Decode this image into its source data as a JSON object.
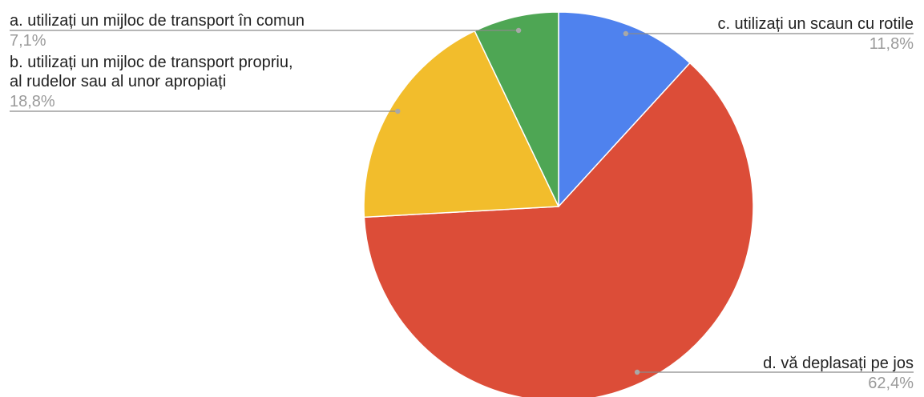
{
  "chart_data": {
    "type": "pie",
    "title": "",
    "start_angle_deg": 0,
    "direction": "clockwise",
    "legend": "none",
    "slices": [
      {
        "label_lines": [
          "c. utilizați un scaun cu rotile"
        ],
        "value": 11.8,
        "display": "11,8%",
        "color": "#4f82ee"
      },
      {
        "label_lines": [
          "d. vă deplasați pe jos"
        ],
        "value": 62.4,
        "display": "62,4%",
        "color": "#dc4d38"
      },
      {
        "label_lines": [
          "b. utilizați un mijloc de transport propriu,",
          "al rudelor sau al unor apropiați"
        ],
        "value": 18.8,
        "display": "18,8%",
        "color": "#f2bd2c"
      },
      {
        "label_lines": [
          "a. utilizați un mijloc de transport în comun"
        ],
        "value": 7.1,
        "display": "7,1%",
        "color": "#4ea654"
      }
    ]
  }
}
